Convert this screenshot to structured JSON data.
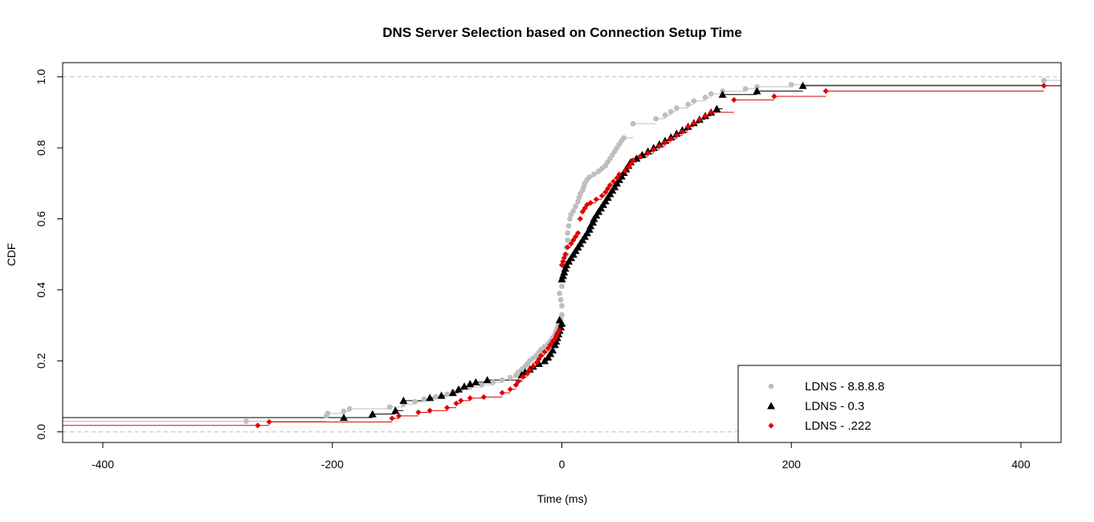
{
  "chart_data": {
    "type": "line",
    "title": "DNS Server Selection based on Connection Setup Time",
    "xlabel": "Time (ms)",
    "ylabel": "CDF",
    "xlim": [
      -435,
      435
    ],
    "ylim": [
      -0.03,
      1.04
    ],
    "x_ticks": [
      "-400",
      "-200",
      "0",
      "200",
      "400"
    ],
    "x_tick_values": [
      -400,
      -200,
      0,
      200,
      400
    ],
    "y_ticks": [
      "0.0",
      "0.2",
      "0.4",
      "0.6",
      "0.8",
      "1.0"
    ],
    "y_tick_values": [
      0,
      0.2,
      0.4,
      0.6,
      0.8,
      1.0
    ],
    "reference_lines_y": [
      0,
      1
    ],
    "reference_line_color": "#bebebe",
    "legend_position": "bottom-right",
    "series": [
      {
        "name": "LDNS - 8.8.8.8",
        "color": "#bebebe",
        "marker": "circle",
        "points": [
          [
            -275,
            0.03
          ],
          [
            -205,
            0.045
          ],
          [
            -204,
            0.052
          ],
          [
            -190,
            0.058
          ],
          [
            -185,
            0.065
          ],
          [
            -150,
            0.07
          ],
          [
            -138,
            0.078
          ],
          [
            -128,
            0.085
          ],
          [
            -120,
            0.092
          ],
          [
            -110,
            0.099
          ],
          [
            -100,
            0.106
          ],
          [
            -95,
            0.113
          ],
          [
            -88,
            0.12
          ],
          [
            -80,
            0.126
          ],
          [
            -70,
            0.132
          ],
          [
            -60,
            0.139
          ],
          [
            -52,
            0.146
          ],
          [
            -45,
            0.153
          ],
          [
            -40,
            0.16
          ],
          [
            -38,
            0.168
          ],
          [
            -35,
            0.176
          ],
          [
            -32,
            0.184
          ],
          [
            -30,
            0.192
          ],
          [
            -28,
            0.2
          ],
          [
            -25,
            0.208
          ],
          [
            -22,
            0.216
          ],
          [
            -20,
            0.224
          ],
          [
            -18,
            0.232
          ],
          [
            -15,
            0.24
          ],
          [
            -12,
            0.248
          ],
          [
            -10,
            0.256
          ],
          [
            -8,
            0.265
          ],
          [
            -6,
            0.274
          ],
          [
            -5,
            0.283
          ],
          [
            -4,
            0.292
          ],
          [
            -3,
            0.301
          ],
          [
            -2,
            0.31
          ],
          [
            -1,
            0.32
          ],
          [
            0,
            0.33
          ],
          [
            0,
            0.355
          ],
          [
            -1,
            0.372
          ],
          [
            -2,
            0.39
          ],
          [
            0,
            0.41
          ],
          [
            1,
            0.43
          ],
          [
            2,
            0.452
          ],
          [
            3,
            0.475
          ],
          [
            4,
            0.5
          ],
          [
            4,
            0.52
          ],
          [
            5,
            0.54
          ],
          [
            5,
            0.56
          ],
          [
            6,
            0.58
          ],
          [
            7,
            0.6
          ],
          [
            8,
            0.612
          ],
          [
            10,
            0.622
          ],
          [
            12,
            0.635
          ],
          [
            14,
            0.648
          ],
          [
            15,
            0.66
          ],
          [
            16,
            0.67
          ],
          [
            18,
            0.68
          ],
          [
            19,
            0.69
          ],
          [
            20,
            0.7
          ],
          [
            22,
            0.71
          ],
          [
            24,
            0.718
          ],
          [
            28,
            0.726
          ],
          [
            32,
            0.734
          ],
          [
            35,
            0.742
          ],
          [
            38,
            0.75
          ],
          [
            40,
            0.76
          ],
          [
            42,
            0.77
          ],
          [
            44,
            0.78
          ],
          [
            46,
            0.79
          ],
          [
            48,
            0.8
          ],
          [
            50,
            0.81
          ],
          [
            52,
            0.82
          ],
          [
            54,
            0.828
          ],
          [
            62,
            0.868
          ],
          [
            82,
            0.882
          ],
          [
            90,
            0.892
          ],
          [
            95,
            0.902
          ],
          [
            100,
            0.912
          ],
          [
            110,
            0.922
          ],
          [
            115,
            0.932
          ],
          [
            125,
            0.942
          ],
          [
            130,
            0.952
          ],
          [
            140,
            0.96
          ],
          [
            160,
            0.966
          ],
          [
            170,
            0.972
          ],
          [
            200,
            0.978
          ],
          [
            420,
            0.99
          ]
        ]
      },
      {
        "name": "LDNS - 0.3",
        "color": "#000000",
        "marker": "triangle",
        "points": [
          [
            -190,
            0.04
          ],
          [
            -165,
            0.05
          ],
          [
            -145,
            0.06
          ],
          [
            -138,
            0.088
          ],
          [
            -115,
            0.096
          ],
          [
            -105,
            0.102
          ],
          [
            -95,
            0.11
          ],
          [
            -90,
            0.12
          ],
          [
            -85,
            0.128
          ],
          [
            -80,
            0.135
          ],
          [
            -75,
            0.14
          ],
          [
            -65,
            0.146
          ],
          [
            -35,
            0.16
          ],
          [
            -32,
            0.168
          ],
          [
            -28,
            0.176
          ],
          [
            -25,
            0.184
          ],
          [
            -20,
            0.192
          ],
          [
            -15,
            0.2
          ],
          [
            -12,
            0.21
          ],
          [
            -10,
            0.22
          ],
          [
            -8,
            0.23
          ],
          [
            -6,
            0.245
          ],
          [
            -5,
            0.255
          ],
          [
            -4,
            0.265
          ],
          [
            -3,
            0.275
          ],
          [
            -2,
            0.285
          ],
          [
            -1,
            0.295
          ],
          [
            0,
            0.305
          ],
          [
            -2,
            0.315
          ],
          [
            0,
            0.43
          ],
          [
            1,
            0.44
          ],
          [
            2,
            0.45
          ],
          [
            3,
            0.46
          ],
          [
            4,
            0.47
          ],
          [
            6,
            0.48
          ],
          [
            8,
            0.49
          ],
          [
            10,
            0.5
          ],
          [
            12,
            0.51
          ],
          [
            14,
            0.52
          ],
          [
            16,
            0.53
          ],
          [
            18,
            0.54
          ],
          [
            20,
            0.55
          ],
          [
            22,
            0.56
          ],
          [
            24,
            0.57
          ],
          [
            25,
            0.58
          ],
          [
            27,
            0.59
          ],
          [
            28,
            0.6
          ],
          [
            30,
            0.61
          ],
          [
            32,
            0.62
          ],
          [
            34,
            0.63
          ],
          [
            36,
            0.64
          ],
          [
            38,
            0.65
          ],
          [
            40,
            0.66
          ],
          [
            42,
            0.67
          ],
          [
            44,
            0.68
          ],
          [
            46,
            0.69
          ],
          [
            48,
            0.7
          ],
          [
            50,
            0.71
          ],
          [
            52,
            0.72
          ],
          [
            54,
            0.73
          ],
          [
            56,
            0.74
          ],
          [
            58,
            0.75
          ],
          [
            60,
            0.76
          ],
          [
            65,
            0.77
          ],
          [
            70,
            0.78
          ],
          [
            75,
            0.79
          ],
          [
            80,
            0.8
          ],
          [
            85,
            0.81
          ],
          [
            90,
            0.82
          ],
          [
            95,
            0.83
          ],
          [
            100,
            0.84
          ],
          [
            105,
            0.85
          ],
          [
            110,
            0.86
          ],
          [
            115,
            0.87
          ],
          [
            120,
            0.88
          ],
          [
            125,
            0.89
          ],
          [
            130,
            0.9
          ],
          [
            135,
            0.91
          ],
          [
            140,
            0.95
          ],
          [
            170,
            0.96
          ],
          [
            210,
            0.975
          ]
        ]
      },
      {
        "name": "LDNS - .222",
        "color": "#e00000",
        "marker": "diamond",
        "points": [
          [
            -265,
            0.018
          ],
          [
            -255,
            0.028
          ],
          [
            -148,
            0.038
          ],
          [
            -142,
            0.045
          ],
          [
            -125,
            0.055
          ],
          [
            -115,
            0.06
          ],
          [
            -100,
            0.068
          ],
          [
            -92,
            0.08
          ],
          [
            -88,
            0.088
          ],
          [
            -80,
            0.095
          ],
          [
            -68,
            0.098
          ],
          [
            -52,
            0.11
          ],
          [
            -45,
            0.12
          ],
          [
            -40,
            0.132
          ],
          [
            -38,
            0.142
          ],
          [
            -34,
            0.155
          ],
          [
            -30,
            0.165
          ],
          [
            -28,
            0.175
          ],
          [
            -25,
            0.185
          ],
          [
            -22,
            0.195
          ],
          [
            -20,
            0.205
          ],
          [
            -18,
            0.215
          ],
          [
            -15,
            0.225
          ],
          [
            -12,
            0.235
          ],
          [
            -10,
            0.245
          ],
          [
            -8,
            0.255
          ],
          [
            -6,
            0.262
          ],
          [
            -5,
            0.27
          ],
          [
            -4,
            0.278
          ],
          [
            -2,
            0.286
          ],
          [
            0,
            0.47
          ],
          [
            1,
            0.48
          ],
          [
            2,
            0.49
          ],
          [
            3,
            0.5
          ],
          [
            5,
            0.52
          ],
          [
            8,
            0.53
          ],
          [
            10,
            0.54
          ],
          [
            12,
            0.55
          ],
          [
            14,
            0.56
          ],
          [
            16,
            0.6
          ],
          [
            18,
            0.62
          ],
          [
            20,
            0.63
          ],
          [
            22,
            0.64
          ],
          [
            25,
            0.645
          ],
          [
            30,
            0.655
          ],
          [
            35,
            0.665
          ],
          [
            38,
            0.675
          ],
          [
            40,
            0.685
          ],
          [
            42,
            0.695
          ],
          [
            45,
            0.705
          ],
          [
            48,
            0.715
          ],
          [
            50,
            0.725
          ],
          [
            55,
            0.735
          ],
          [
            58,
            0.745
          ],
          [
            60,
            0.755
          ],
          [
            62,
            0.765
          ],
          [
            68,
            0.775
          ],
          [
            75,
            0.785
          ],
          [
            80,
            0.795
          ],
          [
            85,
            0.805
          ],
          [
            90,
            0.815
          ],
          [
            95,
            0.825
          ],
          [
            100,
            0.835
          ],
          [
            105,
            0.845
          ],
          [
            110,
            0.86
          ],
          [
            115,
            0.87
          ],
          [
            120,
            0.88
          ],
          [
            125,
            0.89
          ],
          [
            130,
            0.9
          ],
          [
            150,
            0.935
          ],
          [
            185,
            0.945
          ],
          [
            230,
            0.96
          ],
          [
            420,
            0.975
          ]
        ]
      }
    ]
  }
}
